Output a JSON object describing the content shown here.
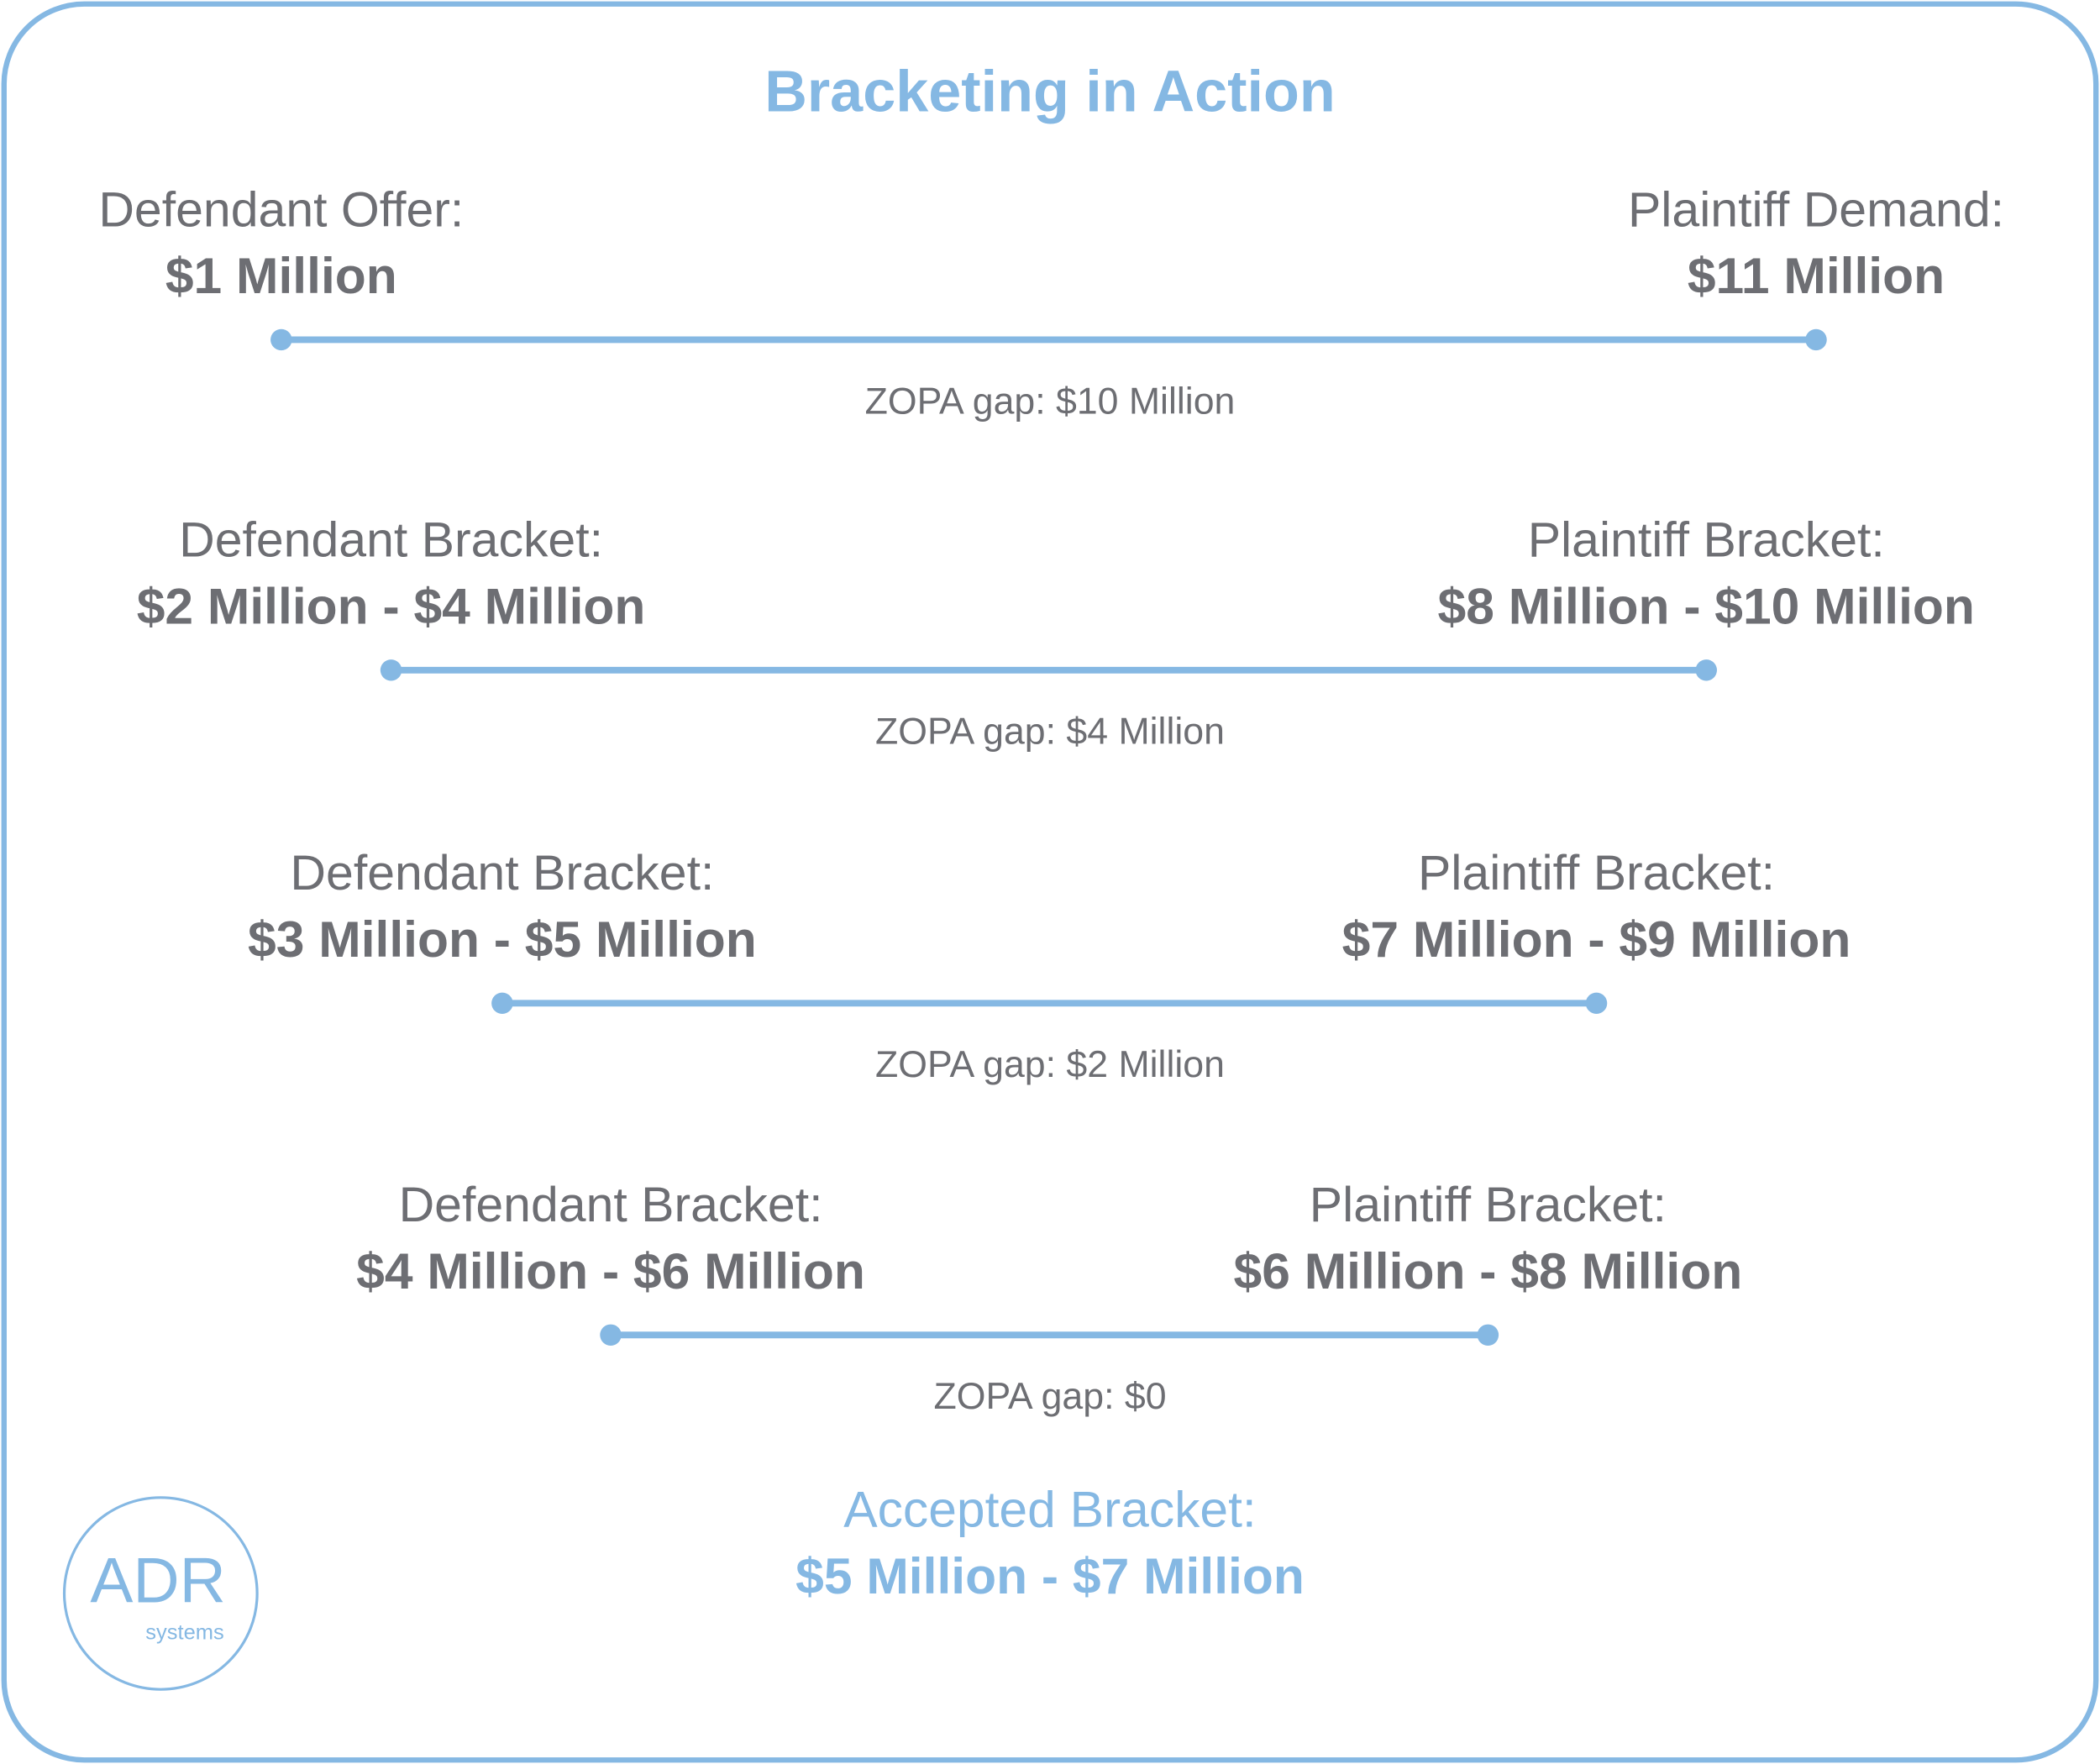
{
  "title": "Bracketing in Action",
  "rows": [
    {
      "left_label": "Defendant Offer:",
      "left_value": "$1 Million",
      "right_label": "Plaintiff Demand:",
      "right_value": "$11 Million",
      "gap": "ZOPA gap: $10 Million"
    },
    {
      "left_label": "Defendant Bracket:",
      "left_value": "$2 Million - $4 Million",
      "right_label": "Plaintiff Bracket:",
      "right_value": "$8 Million - $10 Million",
      "gap": "ZOPA gap: $4 Million"
    },
    {
      "left_label": "Defendant Bracket:",
      "left_value": "$3 Million - $5 Million",
      "right_label": "Plaintiff Bracket:",
      "right_value": "$7 Million - $9 Million",
      "gap": "ZOPA gap: $2 Million"
    },
    {
      "left_label": "Defendant Bracket:",
      "left_value": "$4 Million - $6 Million",
      "right_label": "Plaintiff Bracket:",
      "right_value": "$6 Million - $8 Million",
      "gap": "ZOPA gap: $0"
    }
  ],
  "accepted": {
    "label": "Accepted Bracket:",
    "value": "$5 Million - $7 Million"
  },
  "logo": {
    "text": "ADR",
    "subtext": "systems"
  }
}
